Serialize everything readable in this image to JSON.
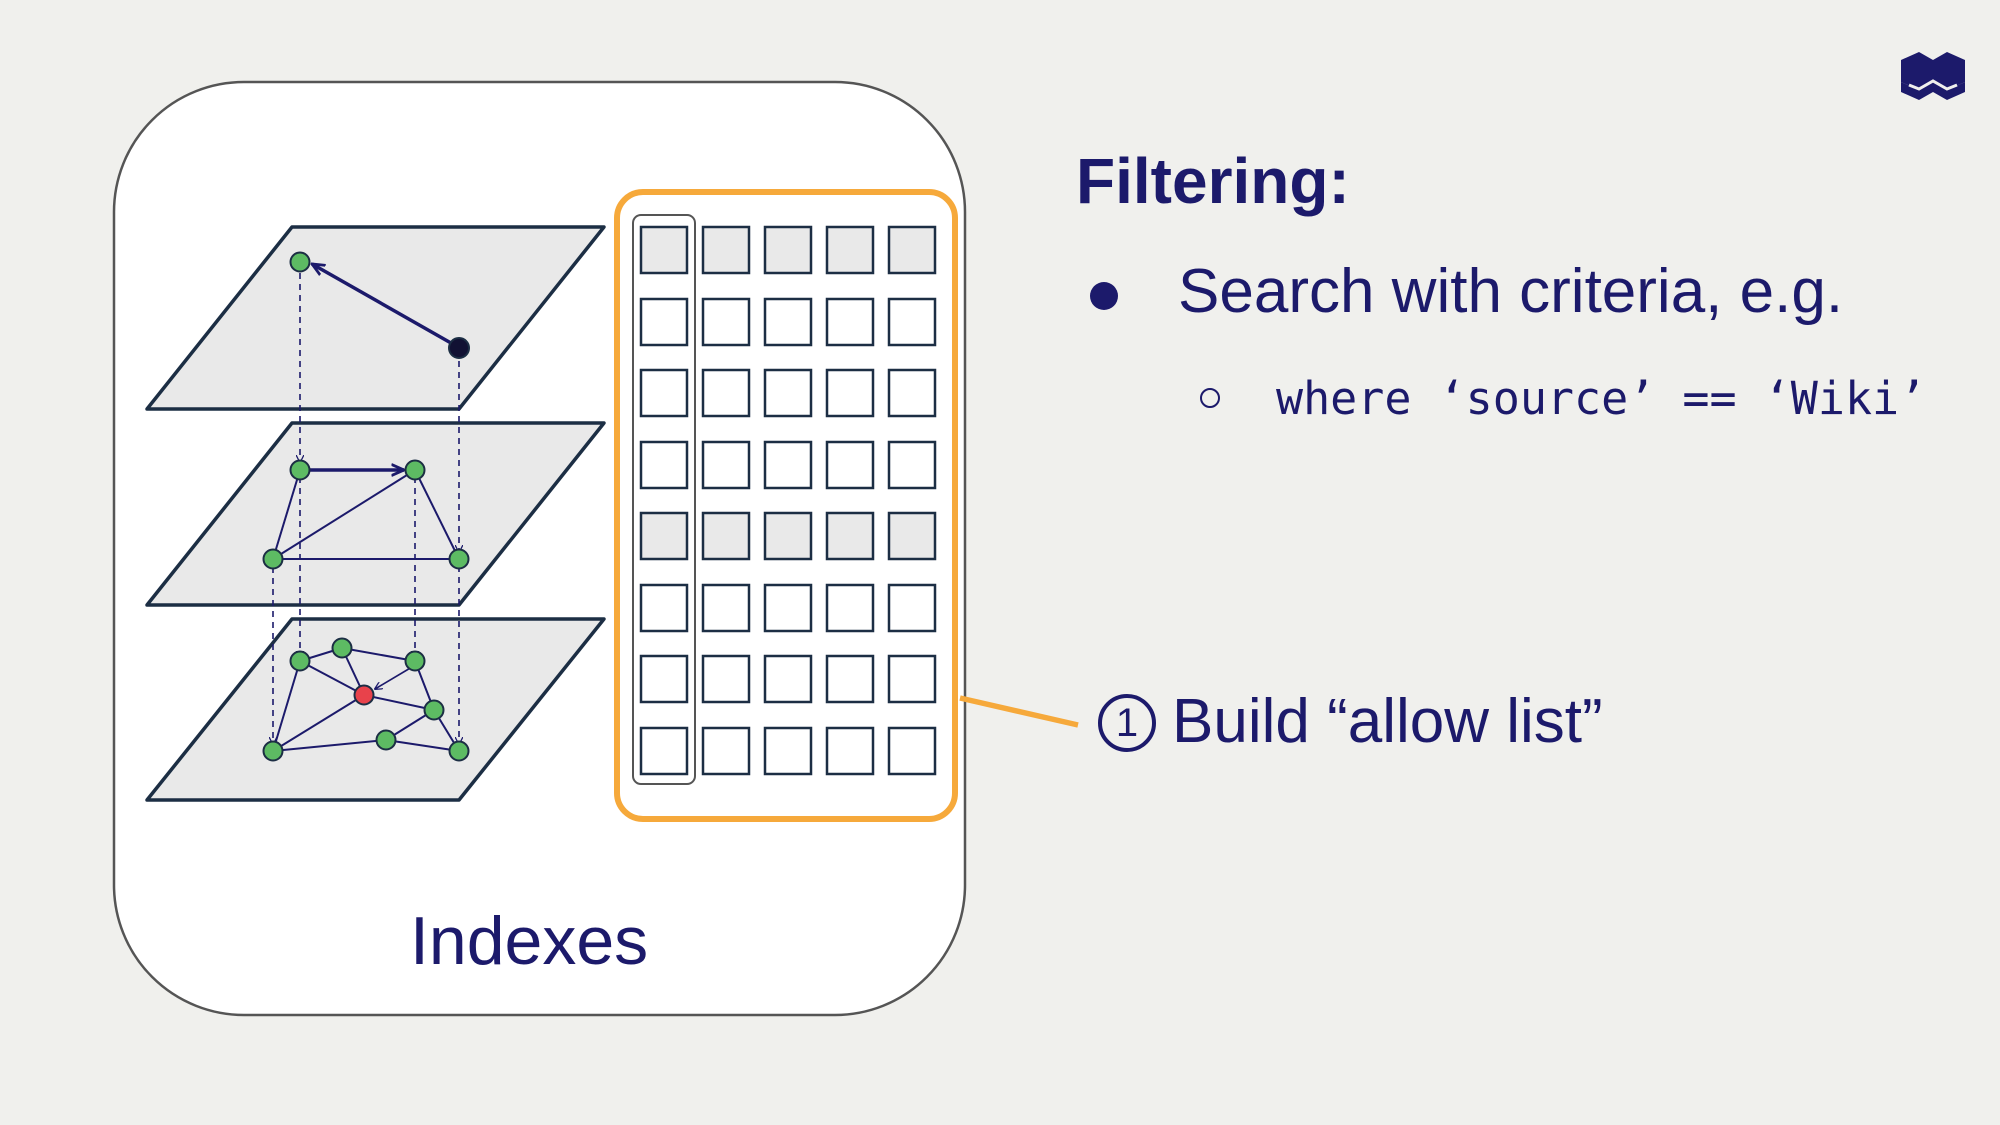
{
  "slide": {
    "title": "Filtering:",
    "bullet": "Search with criteria, e.g.",
    "sub_bullet": "where ‘source’ == ‘Wiki’",
    "callout_number": "1",
    "callout_text": "Build “allow list”",
    "indexes_label": "Indexes"
  },
  "colors": {
    "background": "#f0f0ed",
    "text": "#1c1a6b",
    "highlight": "#f6a93b",
    "node": "#5dbb63",
    "query_node": "#e8424b",
    "layer_fill": "#e9e9e9"
  },
  "icons": {
    "logo": "weaviate-logo-icon",
    "bullet": "filled-circle-bullet",
    "sub_bullet": "hollow-circle-bullet"
  }
}
